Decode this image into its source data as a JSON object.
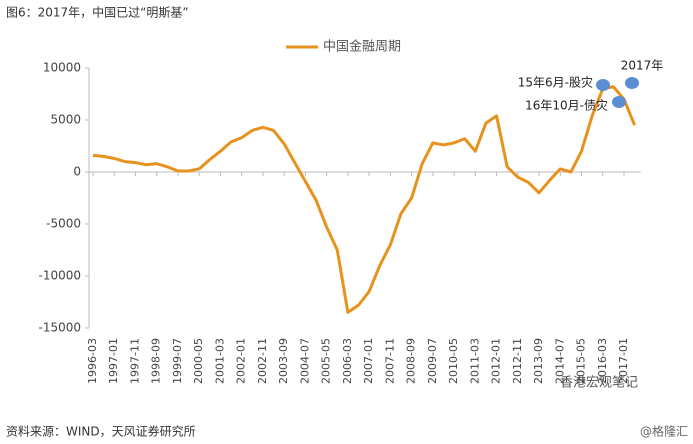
{
  "chart_data": {
    "type": "line",
    "title": "图6：2017年，中国已过“明斯基”",
    "source": "资料来源：WIND，天风证券研究所",
    "watermarks": [
      "@格隆汇",
      "香港宏观笔记"
    ],
    "annotations": [
      "15年6月-股灾",
      "16年10月-债灾",
      "2017年"
    ],
    "categories": [
      "1996-03",
      null,
      "1997-01",
      null,
      "1997-11",
      null,
      "1998-09",
      null,
      "1999-07",
      null,
      "2000-05",
      null,
      "2001-03",
      null,
      "2002-01",
      null,
      "2002-11",
      null,
      "2003-09",
      null,
      "2004-07",
      null,
      "2005-05",
      null,
      "2006-03",
      null,
      "2007-01",
      null,
      "2007-11",
      null,
      "2008-09",
      null,
      "2009-07",
      null,
      "2010-05",
      null,
      "2011-03",
      null,
      "2012-01",
      null,
      "2012-11",
      null,
      "2013-09",
      null,
      "2014-07",
      null,
      "2015-05",
      null,
      "2016-03",
      null,
      "2017-01",
      null
    ],
    "series": [
      {
        "name": "中国金融周期",
        "color": "#e8921e",
        "values": [
          1600,
          1500,
          1300,
          1000,
          900,
          700,
          800,
          500,
          100,
          100,
          300,
          1200,
          2000,
          2900,
          3300,
          4000,
          4300,
          4000,
          2700,
          900,
          -900,
          -2700,
          -5300,
          -7500,
          -13500,
          -12800,
          -11500,
          -9000,
          -7000,
          -4000,
          -2500,
          800,
          2800,
          2600,
          2800,
          3200,
          2000,
          4700,
          5400,
          500,
          -500,
          -1000,
          -2000,
          -800,
          300,
          0,
          2000,
          5400,
          8000,
          8200,
          7000,
          4500
        ]
      }
    ],
    "ylim": [
      -15000,
      10000
    ],
    "yticks": [
      -15000,
      -10000,
      -5000,
      0,
      5000,
      10000
    ],
    "legend": "top",
    "grid": false
  }
}
